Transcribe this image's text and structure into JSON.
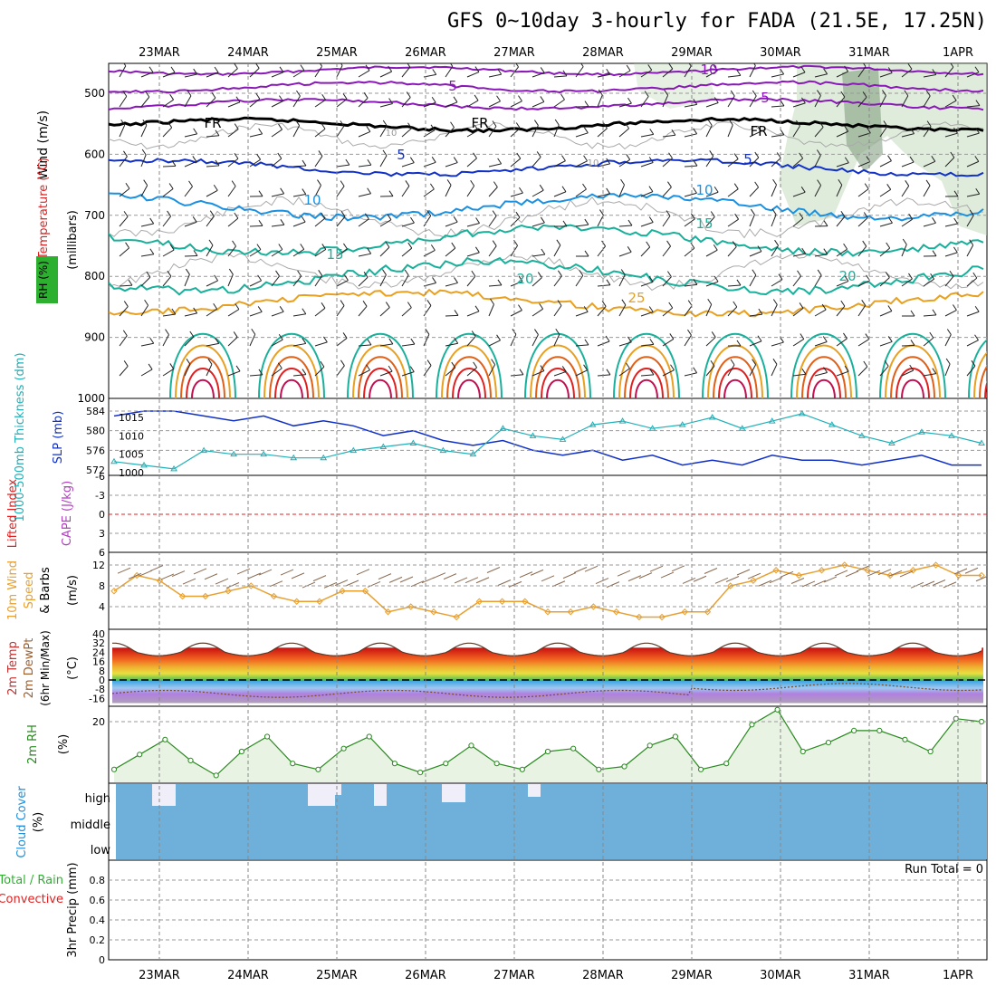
{
  "title": "GFS 0~10day 3-hourly for FADA (21.5E, 17.25N)",
  "dates": [
    "23MAR",
    "24MAR",
    "25MAR",
    "26MAR",
    "27MAR",
    "28MAR",
    "29MAR",
    "30MAR",
    "31MAR",
    "1APR"
  ],
  "colors": {
    "purple": "#8a18b8",
    "black": "#000000",
    "blue": "#1030c8",
    "sky": "#1a90e0",
    "teal": "#18b09a",
    "orange": "#e8a020",
    "deeporange": "#e06018",
    "red": "#e02020",
    "crimson": "#c01050",
    "rh_green": "#b8d4b0",
    "cloud": "#6fb0da",
    "cloud_gap": "#f0eef8",
    "thick_line": "#1030c8",
    "slp_line": "#20b0b8",
    "wind_line": "#e8a030",
    "rh2m_line": "#2a8a20",
    "rh2m_fill": "#e9f3e4"
  },
  "panels": {
    "upper": {
      "y_label_wind": "Wind (m/s)",
      "y_label_temp": "Temperature (°C)",
      "y_label_mb": "(millibars)",
      "y_label_rh": "RH (%)",
      "pressure_ticks": [
        "500",
        "600",
        "700",
        "800",
        "900",
        "1000"
      ],
      "contour_labels": [
        "10",
        "5",
        "5",
        "FR",
        "FR",
        "FR",
        "5",
        "5",
        "10",
        "10",
        "15",
        "15",
        "20",
        "20",
        "25",
        "10",
        "10"
      ]
    },
    "thickness": {
      "y_label_thick": "1000-500mb Thickness (dm)",
      "y_label_slp": "SLP (mb)",
      "thick_ticks": [
        "584",
        "580",
        "576",
        "572"
      ],
      "slp_ticks": [
        "1015",
        "1010",
        "1005",
        "1000"
      ]
    },
    "lifted": {
      "y_label_li": "Lifted Index",
      "y_label_cape": "CAPE (J/kg)",
      "ticks": [
        "-6",
        "-3",
        "0",
        "3",
        "6"
      ]
    },
    "wind10m": {
      "y_label_1": "10m Wind",
      "y_label_2": "Speed",
      "y_label_3": "& Barbs",
      "y_unit": "(m/s)",
      "ticks": [
        "12",
        "8",
        "4"
      ]
    },
    "temp2m": {
      "y_label_1": "2m Temp",
      "y_label_2": "2m DewPt",
      "y_label_3": "(6hr Min/Max)",
      "y_unit": "(°C)",
      "ticks": [
        "40",
        "32",
        "24",
        "16",
        "8",
        "0",
        "-8",
        "-16"
      ]
    },
    "rh2m": {
      "y_label": "2m RH",
      "y_unit": "(%)",
      "ticks": [
        "20"
      ]
    },
    "cloud": {
      "y_label": "Cloud Cover",
      "y_unit": "(%)",
      "levels": [
        "high",
        "middle",
        "low"
      ]
    },
    "precip": {
      "y_label_1": "Total / Rain",
      "y_label_2": "Convective",
      "y_label_3": "3hr Precip (mm)",
      "ticks": [
        "0.8",
        "0.6",
        "0.4",
        "0.2",
        "0"
      ],
      "run_total": "Run Total = 0"
    }
  },
  "chart_data": {
    "type": "line",
    "title": "GFS 0~10day 3-hourly for FADA (21.5E, 17.25N)",
    "time_axis": [
      "23MAR",
      "24MAR",
      "25MAR",
      "26MAR",
      "27MAR",
      "28MAR",
      "29MAR",
      "30MAR",
      "31MAR",
      "1APR"
    ],
    "series": [
      {
        "name": "1000-500mb Thickness (dm)",
        "values": [
          583,
          584,
          584,
          583,
          582,
          583,
          581,
          582,
          581,
          579,
          580,
          578,
          577,
          578,
          576,
          575,
          576,
          574,
          575,
          573,
          574,
          573,
          575,
          574,
          574,
          573,
          574,
          575,
          573,
          573
        ]
      },
      {
        "name": "SLP (mb)",
        "values": [
          1003,
          1002,
          1001,
          1006,
          1005,
          1005,
          1004,
          1004,
          1006,
          1007,
          1008,
          1006,
          1005,
          1012,
          1010,
          1009,
          1013,
          1014,
          1012,
          1013,
          1015,
          1012,
          1014,
          1016,
          1013,
          1010,
          1008,
          1011,
          1010,
          1008
        ]
      },
      {
        "name": "10m Wind Speed (m/s)",
        "values": [
          7,
          10,
          9,
          6,
          6,
          7,
          8,
          6,
          5,
          5,
          7,
          7,
          3,
          4,
          3,
          2,
          5,
          5,
          5,
          3,
          3,
          4,
          3,
          2,
          2,
          3,
          3,
          8,
          9,
          11,
          10,
          11,
          12,
          11,
          10,
          11,
          12,
          10,
          10
        ]
      },
      {
        "name": "2m RH (%)",
        "values": [
          4,
          9,
          14,
          7,
          2,
          10,
          15,
          6,
          4,
          11,
          15,
          6,
          3,
          6,
          12,
          6,
          4,
          10,
          11,
          4,
          5,
          12,
          15,
          4,
          6,
          19,
          24,
          10,
          13,
          17,
          17,
          14,
          10,
          21,
          20
        ]
      }
    ],
    "cape_lifted_index": {
      "ylim": [
        6,
        -6
      ],
      "values_zero_line": 0
    },
    "precip": {
      "ylim": [
        0,
        0.8
      ],
      "run_total": 0
    },
    "ylim_pressure": [
      1000,
      450
    ],
    "temp_contours": [
      "10",
      "5",
      "FR",
      "5",
      "10",
      "15",
      "20",
      "25"
    ]
  }
}
